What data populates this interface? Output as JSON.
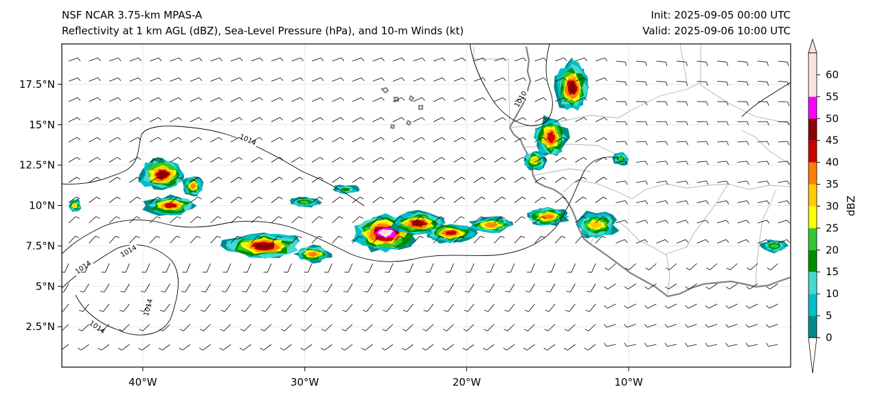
{
  "header": {
    "model": "NSF NCAR 3.75-km MPAS-A",
    "fields": "Reflectivity at 1 km AGL (dBZ), Sea-Level Pressure (hPa), and 10-m Winds (kt)",
    "init": "Init: 2025-09-05 00:00 UTC",
    "valid": "Valid: 2025-09-06 10:00 UTC"
  },
  "map": {
    "lon_range": [
      -45,
      0
    ],
    "lat_range": [
      0,
      20
    ],
    "lon_ticks": [
      {
        "value": -40,
        "label": "40°W"
      },
      {
        "value": -30,
        "label": "30°W"
      },
      {
        "value": -20,
        "label": "20°W"
      },
      {
        "value": -10,
        "label": "10°W"
      }
    ],
    "lat_ticks": [
      {
        "value": 2.5,
        "label": "2.5°N"
      },
      {
        "value": 5,
        "label": "5°N"
      },
      {
        "value": 7.5,
        "label": "7.5°N"
      },
      {
        "value": 10,
        "label": "10°N"
      },
      {
        "value": 12.5,
        "label": "12.5°N"
      },
      {
        "value": 15,
        "label": "15°N"
      },
      {
        "value": 17.5,
        "label": "17.5°N"
      }
    ],
    "isobar_labels": [
      {
        "text": "1014",
        "lon": -33.5,
        "lat": 14.1,
        "rot": 25
      },
      {
        "text": "1010",
        "lon": -16.7,
        "lat": 16.6,
        "rot": -60
      },
      {
        "text": "1014",
        "lon": -40.9,
        "lat": 7.2,
        "rot": -30
      },
      {
        "text": "1014",
        "lon": -43.7,
        "lat": 6.2,
        "rot": -35
      },
      {
        "text": "1014",
        "lon": -39.7,
        "lat": 3.7,
        "rot": -75
      },
      {
        "text": "1014",
        "lon": -42.8,
        "lat": 2.5,
        "rot": 35
      }
    ],
    "storms": [
      {
        "lon": -38.8,
        "lat": 11.9,
        "rx": 1.4,
        "ry": 1.0,
        "peak": 45
      },
      {
        "lon": -36.9,
        "lat": 11.2,
        "rx": 0.6,
        "ry": 0.6,
        "peak": 35
      },
      {
        "lon": -38.3,
        "lat": 10.0,
        "rx": 1.6,
        "ry": 0.6,
        "peak": 40
      },
      {
        "lon": -44.2,
        "lat": 10.0,
        "rx": 0.4,
        "ry": 0.4,
        "peak": 30
      },
      {
        "lon": -32.5,
        "lat": 7.5,
        "rx": 2.4,
        "ry": 0.8,
        "peak": 45
      },
      {
        "lon": -29.5,
        "lat": 7.0,
        "rx": 1.1,
        "ry": 0.5,
        "peak": 35
      },
      {
        "lon": -25.0,
        "lat": 8.3,
        "rx": 2.0,
        "ry": 1.1,
        "peak": 55
      },
      {
        "lon": -23.0,
        "lat": 8.9,
        "rx": 1.6,
        "ry": 0.7,
        "peak": 45
      },
      {
        "lon": -21.0,
        "lat": 8.3,
        "rx": 1.5,
        "ry": 0.6,
        "peak": 40
      },
      {
        "lon": -18.5,
        "lat": 8.8,
        "rx": 1.4,
        "ry": 0.5,
        "peak": 35
      },
      {
        "lon": -15.0,
        "lat": 9.3,
        "rx": 1.3,
        "ry": 0.6,
        "peak": 35
      },
      {
        "lon": -13.5,
        "lat": 17.3,
        "rx": 1.0,
        "ry": 1.6,
        "peak": 45
      },
      {
        "lon": -14.8,
        "lat": 14.2,
        "rx": 1.0,
        "ry": 1.3,
        "peak": 40
      },
      {
        "lon": -15.8,
        "lat": 12.8,
        "rx": 0.7,
        "ry": 0.6,
        "peak": 30
      },
      {
        "lon": -12.0,
        "lat": 8.8,
        "rx": 1.3,
        "ry": 0.8,
        "peak": 30
      },
      {
        "lon": -10.5,
        "lat": 12.9,
        "rx": 0.5,
        "ry": 0.4,
        "peak": 20
      },
      {
        "lon": -1.0,
        "lat": 7.5,
        "rx": 0.8,
        "ry": 0.4,
        "peak": 20
      },
      {
        "lon": -30.0,
        "lat": 10.2,
        "rx": 1.0,
        "ry": 0.3,
        "peak": 20
      },
      {
        "lon": -27.5,
        "lat": 11.0,
        "rx": 0.8,
        "ry": 0.3,
        "peak": 15
      }
    ]
  },
  "colorbar": {
    "label": "dBZ",
    "min": 0,
    "max": 65,
    "levels": [
      {
        "from": 0,
        "to": 5,
        "color": "#008b8b"
      },
      {
        "from": 5,
        "to": 10,
        "color": "#00bfc8"
      },
      {
        "from": 10,
        "to": 15,
        "color": "#48d8d0"
      },
      {
        "from": 15,
        "to": 20,
        "color": "#008c00"
      },
      {
        "from": 20,
        "to": 25,
        "color": "#32c832"
      },
      {
        "from": 25,
        "to": 30,
        "color": "#ffff00"
      },
      {
        "from": 30,
        "to": 35,
        "color": "#ffcc00"
      },
      {
        "from": 35,
        "to": 40,
        "color": "#ff8000"
      },
      {
        "from": 40,
        "to": 45,
        "color": "#c80000"
      },
      {
        "from": 45,
        "to": 50,
        "color": "#8b0000"
      },
      {
        "from": 50,
        "to": 55,
        "color": "#ff00ff"
      },
      {
        "from": 55,
        "to": 65,
        "color": "#fde4e0"
      }
    ],
    "ticks": [
      "0",
      "5",
      "10",
      "15",
      "20",
      "25",
      "30",
      "35",
      "40",
      "45",
      "50",
      "55",
      "60"
    ]
  },
  "colors": {
    "frame": "#000000",
    "coast": "#808080",
    "border": "#b0b0b0",
    "isobar": "#000000",
    "barb": "#000000"
  }
}
